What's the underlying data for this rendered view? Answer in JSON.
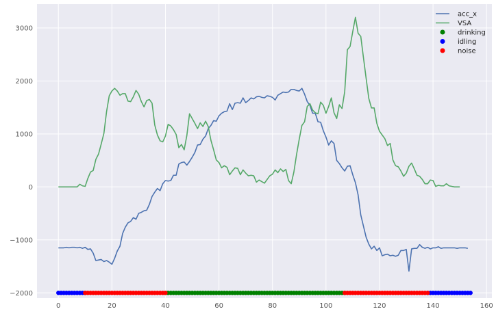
{
  "chart_data": {
    "type": "line",
    "title": "",
    "xlabel": "",
    "ylabel": "",
    "xlim": [
      -8,
      162
    ],
    "ylim": [
      -2100,
      3450
    ],
    "xticks": [
      0,
      20,
      40,
      60,
      80,
      100,
      120,
      140,
      160
    ],
    "yticks": [
      -2000,
      -1000,
      0,
      1000,
      2000,
      3000
    ],
    "xtick_labels": [
      "0",
      "20",
      "40",
      "60",
      "80",
      "100",
      "120",
      "140",
      "160"
    ],
    "ytick_labels": [
      "−2000",
      "−1000",
      "0",
      "1000",
      "2000",
      "3000"
    ],
    "grid": true,
    "legend_position": "top-right",
    "series": [
      {
        "name": "acc_x",
        "kind": "line",
        "color": "#4c72b0",
        "x_start": 0,
        "values": [
          -1150,
          -1150,
          -1150,
          -1140,
          -1150,
          -1140,
          -1140,
          -1150,
          -1140,
          -1160,
          -1140,
          -1180,
          -1170,
          -1250,
          -1390,
          -1380,
          -1370,
          -1410,
          -1390,
          -1420,
          -1460,
          -1350,
          -1210,
          -1120,
          -880,
          -760,
          -680,
          -650,
          -580,
          -610,
          -500,
          -480,
          -450,
          -440,
          -330,
          -180,
          -100,
          -30,
          -70,
          60,
          120,
          110,
          120,
          220,
          220,
          430,
          460,
          470,
          410,
          480,
          560,
          650,
          790,
          800,
          900,
          960,
          1100,
          1160,
          1250,
          1240,
          1340,
          1390,
          1420,
          1430,
          1570,
          1460,
          1580,
          1590,
          1580,
          1680,
          1590,
          1630,
          1680,
          1660,
          1700,
          1710,
          1690,
          1680,
          1720,
          1710,
          1690,
          1640,
          1730,
          1760,
          1790,
          1780,
          1790,
          1840,
          1840,
          1820,
          1810,
          1860,
          1750,
          1610,
          1540,
          1390,
          1390,
          1230,
          1220,
          1060,
          940,
          790,
          870,
          820,
          500,
          440,
          360,
          300,
          390,
          400,
          230,
          80,
          -150,
          -530,
          -740,
          -950,
          -1080,
          -1170,
          -1120,
          -1200,
          -1150,
          -1300,
          -1280,
          -1270,
          -1300,
          -1290,
          -1310,
          -1290,
          -1200,
          -1200,
          -1180,
          -1590,
          -1170,
          -1160,
          -1160,
          -1090,
          -1140,
          -1160,
          -1140,
          -1170,
          -1150,
          -1150,
          -1130,
          -1160,
          -1150,
          -1150,
          -1150,
          -1150,
          -1150,
          -1160,
          -1150,
          -1150,
          -1150,
          -1160
        ]
      },
      {
        "name": "VSA",
        "kind": "line",
        "color": "#55a868",
        "x_start": 0,
        "values": [
          0,
          0,
          0,
          0,
          0,
          0,
          0,
          0,
          50,
          20,
          10,
          160,
          280,
          310,
          520,
          620,
          810,
          1010,
          1420,
          1720,
          1810,
          1860,
          1810,
          1730,
          1760,
          1760,
          1620,
          1610,
          1700,
          1820,
          1750,
          1610,
          1510,
          1630,
          1650,
          1580,
          1170,
          980,
          870,
          850,
          960,
          1180,
          1150,
          1080,
          990,
          740,
          800,
          700,
          970,
          1380,
          1290,
          1200,
          1100,
          1210,
          1140,
          1240,
          1140,
          880,
          700,
          510,
          460,
          360,
          400,
          370,
          230,
          300,
          360,
          350,
          230,
          320,
          260,
          210,
          220,
          210,
          90,
          130,
          100,
          70,
          140,
          210,
          240,
          320,
          270,
          340,
          290,
          330,
          120,
          60,
          280,
          610,
          900,
          1160,
          1230,
          1520,
          1570,
          1450,
          1400,
          1380,
          1600,
          1540,
          1390,
          1520,
          1680,
          1400,
          1290,
          1550,
          1480,
          1800,
          2590,
          2650,
          2930,
          3200,
          2900,
          2840,
          2440,
          2050,
          1670,
          1490,
          1490,
          1200,
          1050,
          980,
          910,
          780,
          820,
          510,
          400,
          380,
          300,
          200,
          260,
          390,
          450,
          340,
          220,
          200,
          140,
          60,
          60,
          130,
          120,
          10,
          30,
          20,
          20,
          60,
          20,
          10,
          0,
          0,
          0
        ]
      },
      {
        "name": "drinking",
        "kind": "points",
        "color": "#008000",
        "y": -2000,
        "x_from": 40,
        "x_to": 107
      },
      {
        "name": "idling",
        "kind": "points",
        "color": "#0000ff",
        "y": -2000,
        "ranges": [
          [
            0,
            10
          ],
          [
            138,
            154
          ]
        ]
      },
      {
        "name": "noise",
        "kind": "points",
        "color": "#ff0000",
        "y": -2000,
        "ranges": [
          [
            10,
            40
          ],
          [
            107,
            138
          ]
        ]
      }
    ]
  }
}
